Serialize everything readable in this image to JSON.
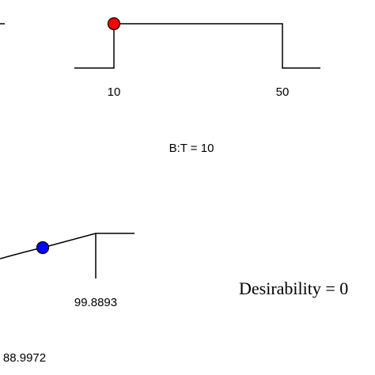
{
  "chart_data": [
    {
      "type": "line",
      "variable_label": "B:T = 10",
      "x_tick_labels": [
        "10",
        "50"
      ],
      "x": [
        10,
        50
      ],
      "desirability_profile": "step",
      "marker": {
        "x": 10,
        "color": "#ff0000"
      }
    },
    {
      "type": "line",
      "x_tick_labels": [
        "99.8893"
      ],
      "current_value_label": "88.9972",
      "desirability_profile": "ramp",
      "marker": {
        "value": 88.9972,
        "color": "#0000ff"
      }
    }
  ],
  "desirability_text": "Desirability = 0",
  "colors": {
    "line": "#000000",
    "marker_red": "#ff0000",
    "marker_blue": "#0000ff",
    "background": "#ffffff"
  }
}
